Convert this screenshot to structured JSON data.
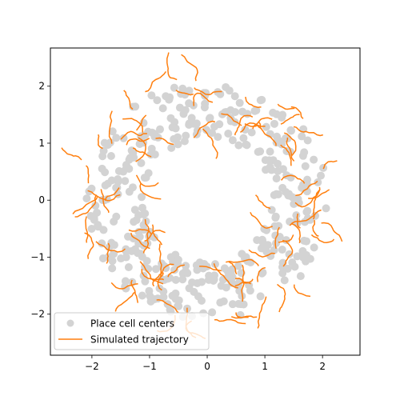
{
  "colors": {
    "cells": "#d3d3d3",
    "trajectory": "#ff7f0e",
    "axes": "#000000",
    "background": "#ffffff"
  },
  "chart_data": {
    "type": "scatter",
    "title": "",
    "xlabel": "",
    "ylabel": "",
    "xlim": [
      -2.72,
      2.65
    ],
    "ylim": [
      -2.72,
      2.67
    ],
    "xticks": [
      -2,
      -1,
      0,
      1,
      2
    ],
    "yticks": [
      -2,
      -1,
      0,
      1,
      2
    ],
    "xtick_labels": [
      "−2",
      "−1",
      "0",
      "1",
      "2"
    ],
    "ytick_labels": [
      "−2",
      "−1",
      "0",
      "1",
      "2"
    ],
    "grid": false,
    "legend_position": "lower-left",
    "series": [
      {
        "name": "Place cell centers",
        "kind": "scatter",
        "distribution": "ring",
        "count": 400,
        "radius_range": [
          1.1,
          2.1
        ],
        "x": [],
        "y": []
      },
      {
        "name": "Simulated trajectory",
        "kind": "line-segments",
        "distribution": "ring",
        "count": 95,
        "radius_range": [
          1.1,
          2.35
        ],
        "segments": []
      }
    ]
  }
}
